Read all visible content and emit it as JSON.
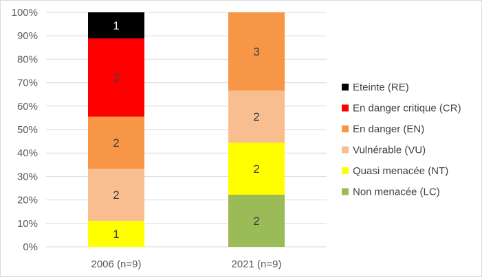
{
  "chart_data": {
    "type": "bar",
    "stacked": true,
    "normalized_percent": true,
    "categories": [
      "2006 (n=9)",
      "2021 (n=9)"
    ],
    "series": [
      {
        "name": "Non menacée (LC)",
        "color": "#9bbb59",
        "values": [
          0,
          2
        ],
        "labels": [
          "",
          "2"
        ]
      },
      {
        "name": "Quasi menacée (NT)",
        "color": "#ffff00",
        "values": [
          1,
          2
        ],
        "labels": [
          "1",
          "2"
        ]
      },
      {
        "name": "Vulnérable (VU)",
        "color": "#f9be8f",
        "values": [
          2,
          2
        ],
        "labels": [
          "2",
          "2"
        ]
      },
      {
        "name": "En danger (EN)",
        "color": "#f79646",
        "values": [
          2,
          3
        ],
        "labels": [
          "2",
          "3"
        ]
      },
      {
        "name": "En danger critique (CR)",
        "color": "#ff0000",
        "values": [
          3,
          0
        ],
        "labels": [
          "3",
          ""
        ]
      },
      {
        "name": "Eteinte (RE)",
        "color": "#000000",
        "values": [
          1,
          0
        ],
        "labels": [
          "1",
          ""
        ]
      }
    ],
    "y_ticks": [
      "0%",
      "10%",
      "20%",
      "30%",
      "40%",
      "50%",
      "60%",
      "70%",
      "80%",
      "90%",
      "100%"
    ],
    "ylim": [
      0,
      100
    ],
    "legend_position": "right",
    "legend_order": [
      "Eteinte (RE)",
      "En danger critique (CR)",
      "En danger (EN)",
      "Vulnérable (VU)",
      "Quasi menacée (NT)",
      "Non menacée (LC)"
    ]
  }
}
